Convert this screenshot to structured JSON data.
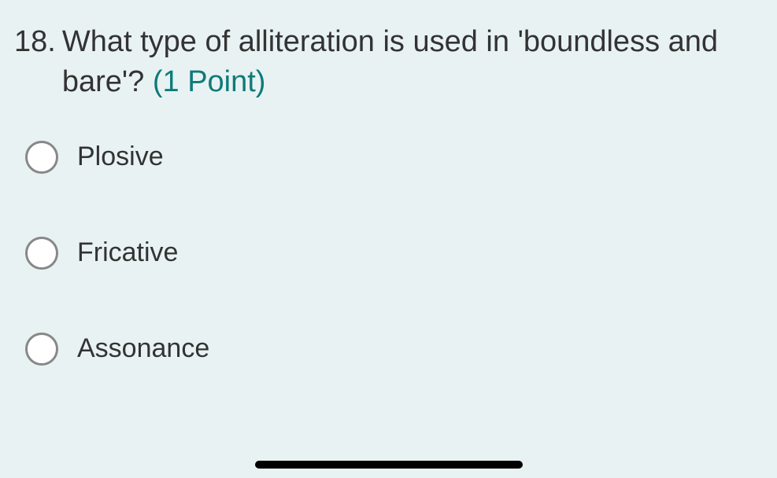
{
  "question": {
    "number": "18.",
    "text": "What type of alliteration is used in 'boundless and bare'?",
    "points_label": "(1 Point)"
  },
  "options": [
    {
      "label": "Plosive"
    },
    {
      "label": "Fricative"
    },
    {
      "label": "Assonance"
    }
  ],
  "colors": {
    "background": "#e8f2f2",
    "text": "#333333",
    "points": "#0f7a7a",
    "radio_border": "#888888",
    "radio_fill": "#ffffff",
    "indicator": "#000000"
  },
  "typography": {
    "question_fontsize": 38,
    "option_fontsize": 34
  }
}
